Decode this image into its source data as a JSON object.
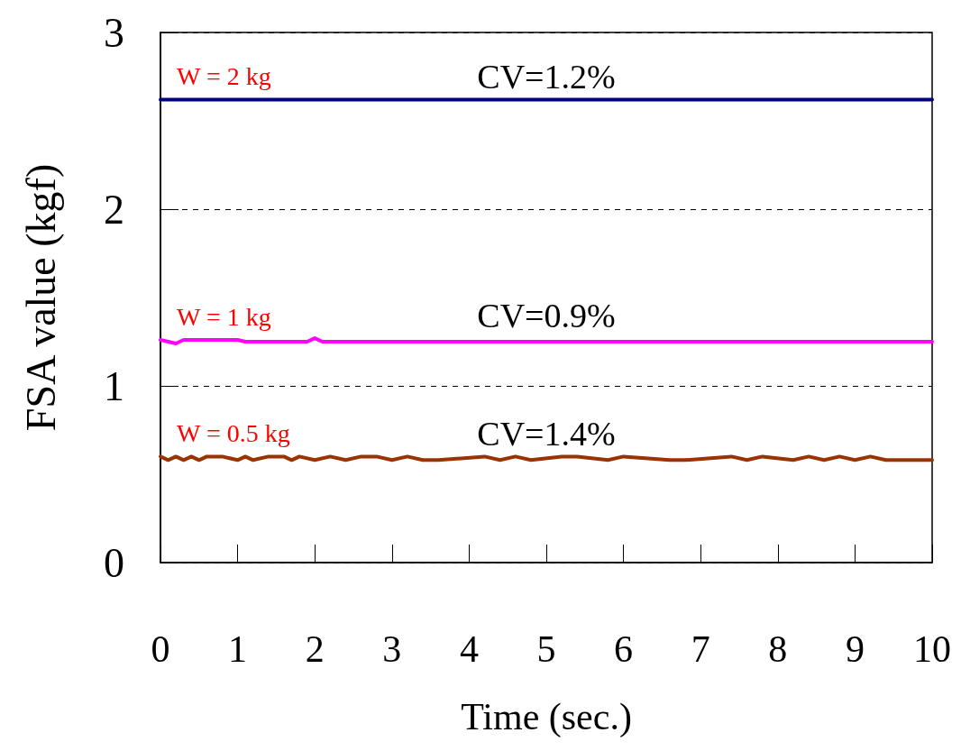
{
  "chart_data": {
    "type": "line",
    "xlabel": "Time (sec.)",
    "ylabel": "FSA value (kgf)",
    "xlim": [
      0,
      10
    ],
    "xticks": [
      0,
      1,
      2,
      3,
      4,
      5,
      6,
      7,
      8,
      9,
      10
    ],
    "ylim": [
      0,
      3
    ],
    "yticks": [
      0,
      1,
      2,
      3
    ],
    "grid": "y",
    "marker": "none",
    "line_style": "solid",
    "series": [
      {
        "name": "W = 2 kg",
        "color": "#000080",
        "x": [
          0,
          10
        ],
        "values": [
          2.62,
          2.62
        ]
      },
      {
        "name": "W = 1 kg",
        "color": "#ff00ff",
        "x": [
          0,
          0.2,
          0.3,
          1.0,
          1.1,
          1.9,
          2.0,
          2.1,
          10
        ],
        "values": [
          1.26,
          1.24,
          1.26,
          1.26,
          1.25,
          1.25,
          1.27,
          1.25,
          1.25
        ]
      },
      {
        "name": "W = 0.5 kg",
        "color": "#993300",
        "x": [
          0,
          0.1,
          0.2,
          0.3,
          0.4,
          0.5,
          0.6,
          0.7,
          0.8,
          1.0,
          1.1,
          1.2,
          1.4,
          1.6,
          1.7,
          1.8,
          2.0,
          2.2,
          2.4,
          2.6,
          2.8,
          3.0,
          3.2,
          3.4,
          3.6,
          4.2,
          4.4,
          4.6,
          4.8,
          5.2,
          5.4,
          5.8,
          6.0,
          6.6,
          6.8,
          7.4,
          7.6,
          7.8,
          8.2,
          8.4,
          8.6,
          8.8,
          9.0,
          9.2,
          9.4,
          9.6,
          10
        ],
        "values": [
          0.6,
          0.58,
          0.6,
          0.58,
          0.6,
          0.58,
          0.6,
          0.6,
          0.6,
          0.58,
          0.6,
          0.58,
          0.6,
          0.6,
          0.58,
          0.6,
          0.58,
          0.6,
          0.58,
          0.6,
          0.6,
          0.58,
          0.6,
          0.58,
          0.58,
          0.6,
          0.58,
          0.6,
          0.58,
          0.6,
          0.6,
          0.58,
          0.6,
          0.58,
          0.58,
          0.6,
          0.58,
          0.6,
          0.58,
          0.6,
          0.58,
          0.6,
          0.58,
          0.6,
          0.58,
          0.58,
          0.58
        ]
      }
    ],
    "annotations": [
      "CV=1.2%",
      "CV=0.9%",
      "CV=1.4%"
    ]
  }
}
